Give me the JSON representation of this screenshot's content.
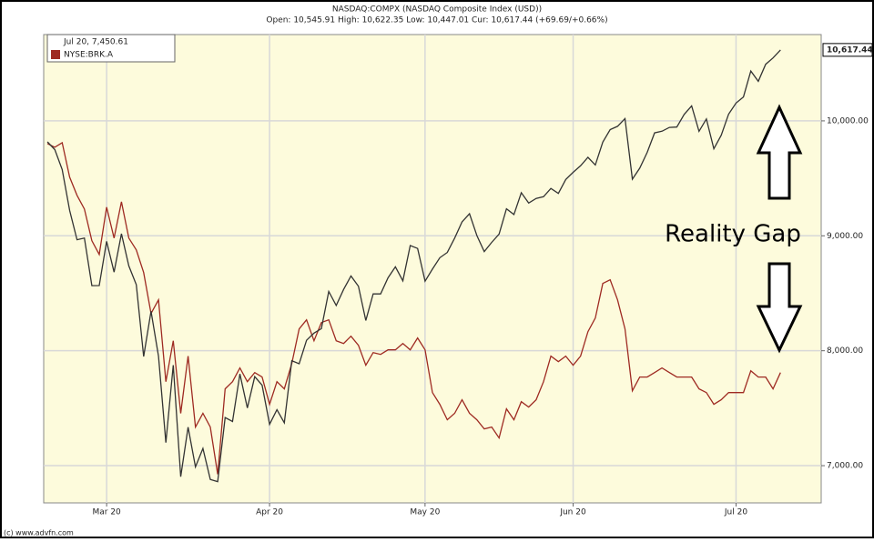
{
  "chart_data": {
    "type": "line",
    "title": "NASDAQ:COMPX (NASDAQ Composite Index (USD))",
    "subtitle": "Open: 10,545.91 High: 10,622.35 Low: 10,447.01 Cur: 10,617.44 (+69.69/+0.66%)",
    "current_label": "10,617.44",
    "current_value": 10617.44,
    "legend_header": "Jul 20, 7,450.61",
    "legend": "top-left",
    "annotation": "Reality Gap",
    "footer": "(c) www.advfn.com",
    "grid": true,
    "background": "#fdfbdc",
    "x": [
      0,
      1,
      2,
      3,
      4,
      5,
      6,
      7,
      8,
      9,
      10,
      11,
      12,
      13,
      14,
      15,
      16,
      17,
      18,
      19,
      20,
      21,
      22,
      23,
      24,
      25,
      26,
      27,
      28,
      29,
      30,
      31,
      32,
      33,
      34,
      35,
      36,
      37,
      38,
      39,
      40,
      41,
      42,
      43,
      44,
      45,
      46,
      47,
      48,
      49,
      50,
      51,
      52,
      53,
      54,
      55,
      56,
      57,
      58,
      59,
      60,
      61,
      62,
      63,
      64,
      65,
      66,
      67,
      68,
      69,
      70,
      71,
      72,
      73,
      74,
      75,
      76,
      77,
      78,
      79,
      80,
      81,
      82,
      83,
      84,
      85,
      86,
      87,
      88,
      89,
      90,
      91,
      92,
      93,
      94,
      95,
      96,
      97,
      98,
      99
    ],
    "xlim": [
      -0.5,
      104.5
    ],
    "xticks": [
      {
        "value": 8,
        "label": "Mar 20"
      },
      {
        "value": 30,
        "label": "Apr 20"
      },
      {
        "value": 51,
        "label": "May 20"
      },
      {
        "value": 71,
        "label": "Jun 20"
      },
      {
        "value": 93,
        "label": "Jul 20"
      }
    ],
    "ylim": [
      6676,
      10751
    ],
    "yticks": [
      {
        "value": 7000,
        "label": "7,000.00"
      },
      {
        "value": 8000,
        "label": "8,000.00"
      },
      {
        "value": 9000,
        "label": "9,000.00"
      },
      {
        "value": 10000,
        "label": "10,000.00"
      }
    ],
    "series": [
      {
        "color": "#333333",
        "values": [
          9817,
          9750,
          9577,
          9221,
          8966,
          8980,
          8566,
          8567,
          8952,
          8684,
          9018,
          8738,
          8575,
          7950,
          8344,
          7952,
          7201,
          7875,
          6904,
          7335,
          6989,
          7150,
          6880,
          6861,
          7418,
          7384,
          7798,
          7502,
          7774,
          7700,
          7360,
          7487,
          7373,
          7913,
          7887,
          8091,
          8153,
          8192,
          8516,
          8394,
          8533,
          8650,
          8561,
          8263,
          8495,
          8494,
          8634,
          8730,
          8608,
          8915,
          8890,
          8605,
          8710,
          8809,
          8855,
          8980,
          9121,
          9192,
          9002,
          8863,
          8943,
          9015,
          9235,
          9185,
          9375,
          9285,
          9325,
          9340,
          9412,
          9369,
          9490,
          9552,
          9609,
          9683,
          9616,
          9815,
          9924,
          9953,
          10020,
          9493,
          9589,
          9726,
          9896,
          9910,
          9943,
          9946,
          10056,
          10131,
          9909,
          10017,
          9757,
          9875,
          10059,
          10155,
          10208,
          10434,
          10344,
          10492,
          10548,
          10617
        ]
      },
      {
        "name": "NYSE:BRK.A",
        "color": "#9e2a22",
        "values": [
          9802,
          9771,
          9810,
          9510,
          9352,
          9233,
          8957,
          8838,
          9249,
          8980,
          9296,
          8980,
          8877,
          8680,
          8324,
          8443,
          7731,
          8087,
          7455,
          7953,
          7336,
          7455,
          7336,
          6925,
          7668,
          7731,
          7850,
          7731,
          7810,
          7771,
          7534,
          7731,
          7668,
          7889,
          8190,
          8269,
          8087,
          8245,
          8269,
          8087,
          8063,
          8126,
          8047,
          7874,
          7984,
          7968,
          8008,
          8008,
          8063,
          8008,
          8111,
          8008,
          7636,
          7534,
          7399,
          7455,
          7573,
          7455,
          7399,
          7320,
          7336,
          7241,
          7494,
          7399,
          7557,
          7510,
          7573,
          7731,
          7953,
          7905,
          7953,
          7874,
          7953,
          8166,
          8285,
          8585,
          8617,
          8443,
          8190,
          7652,
          7771,
          7771,
          7810,
          7850,
          7810,
          7771,
          7771,
          7771,
          7668,
          7636,
          7534,
          7573,
          7636,
          7636,
          7636,
          7826,
          7771,
          7771,
          7668,
          7810
        ]
      }
    ]
  }
}
